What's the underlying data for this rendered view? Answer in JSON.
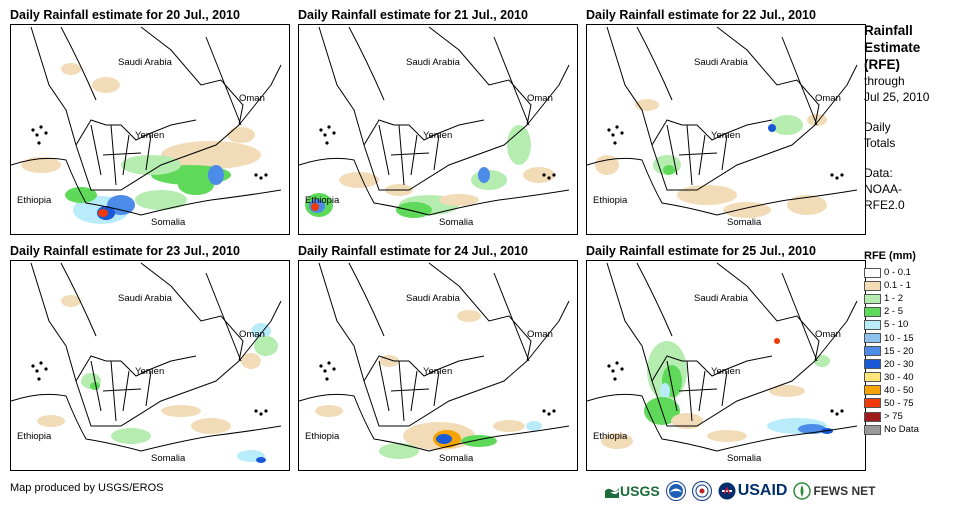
{
  "panels": [
    {
      "title": "Daily Rainfall estimate for 20 Jul., 2010",
      "labels": [
        "Saudi Arabia",
        "Oman",
        "Yemen",
        "Ethiopia",
        "Somalia"
      ]
    },
    {
      "title": "Daily Rainfall estimate for 21 Jul., 2010",
      "labels": [
        "Saudi Arabia",
        "Oman",
        "Yemen",
        "Ethiopia",
        "Somalia"
      ]
    },
    {
      "title": "Daily Rainfall estimate for 22 Jul., 2010",
      "labels": [
        "Saudi Arabia",
        "Oman",
        "Yemen",
        "Ethiopia",
        "Somalia"
      ]
    },
    {
      "title": "Daily Rainfall estimate for 23 Jul., 2010",
      "labels": [
        "Saudi Arabia",
        "Oman",
        "Yemen",
        "Ethiopia",
        "Somalia"
      ]
    },
    {
      "title": "Daily Rainfall estimate for 24 Jul., 2010",
      "labels": [
        "Saudi Arabia",
        "Oman",
        "Yemen",
        "Ethiopia",
        "Somalia"
      ]
    },
    {
      "title": "Daily Rainfall estimate for 25 Jul., 2010",
      "labels": [
        "Saudi Arabia",
        "Oman",
        "Yemen",
        "Ethiopia",
        "Somalia"
      ]
    }
  ],
  "sidebar": {
    "title_lines": [
      "Rainfall",
      "Estimate",
      "(RFE)"
    ],
    "through": "through",
    "date": "Jul 25, 2010",
    "daily": "Daily",
    "totals": "Totals",
    "data_label": "Data:",
    "data_source_1": "NOAA-",
    "data_source_2": "RFE2.0"
  },
  "legend": {
    "title": "RFE (mm)",
    "items": [
      {
        "label": "0 - 0.1",
        "color": "#ffffff"
      },
      {
        "label": "0.1 - 1",
        "color": "#f2dcb8"
      },
      {
        "label": "1 - 2",
        "color": "#b5ecb0"
      },
      {
        "label": "2 - 5",
        "color": "#5fd95a"
      },
      {
        "label": "5 - 10",
        "color": "#b9ecfa"
      },
      {
        "label": "10 - 15",
        "color": "#8cc1f0"
      },
      {
        "label": "15 - 20",
        "color": "#4c8ce8"
      },
      {
        "label": "20 - 30",
        "color": "#1a59d6"
      },
      {
        "label": "30 - 40",
        "color": "#ffe57a"
      },
      {
        "label": "40 - 50",
        "color": "#f5a300"
      },
      {
        "label": "50 - 75",
        "color": "#f03a0a"
      },
      {
        "label": "> 75",
        "color": "#9e1b1b"
      },
      {
        "label": "No Data",
        "color": "#999999"
      }
    ]
  },
  "footer": {
    "credit": "Map produced by USGS/EROS"
  },
  "logos": {
    "usgs": "USGS",
    "noaa": "NOAA",
    "usaid": "USAID",
    "fews": "FEWS NET"
  }
}
